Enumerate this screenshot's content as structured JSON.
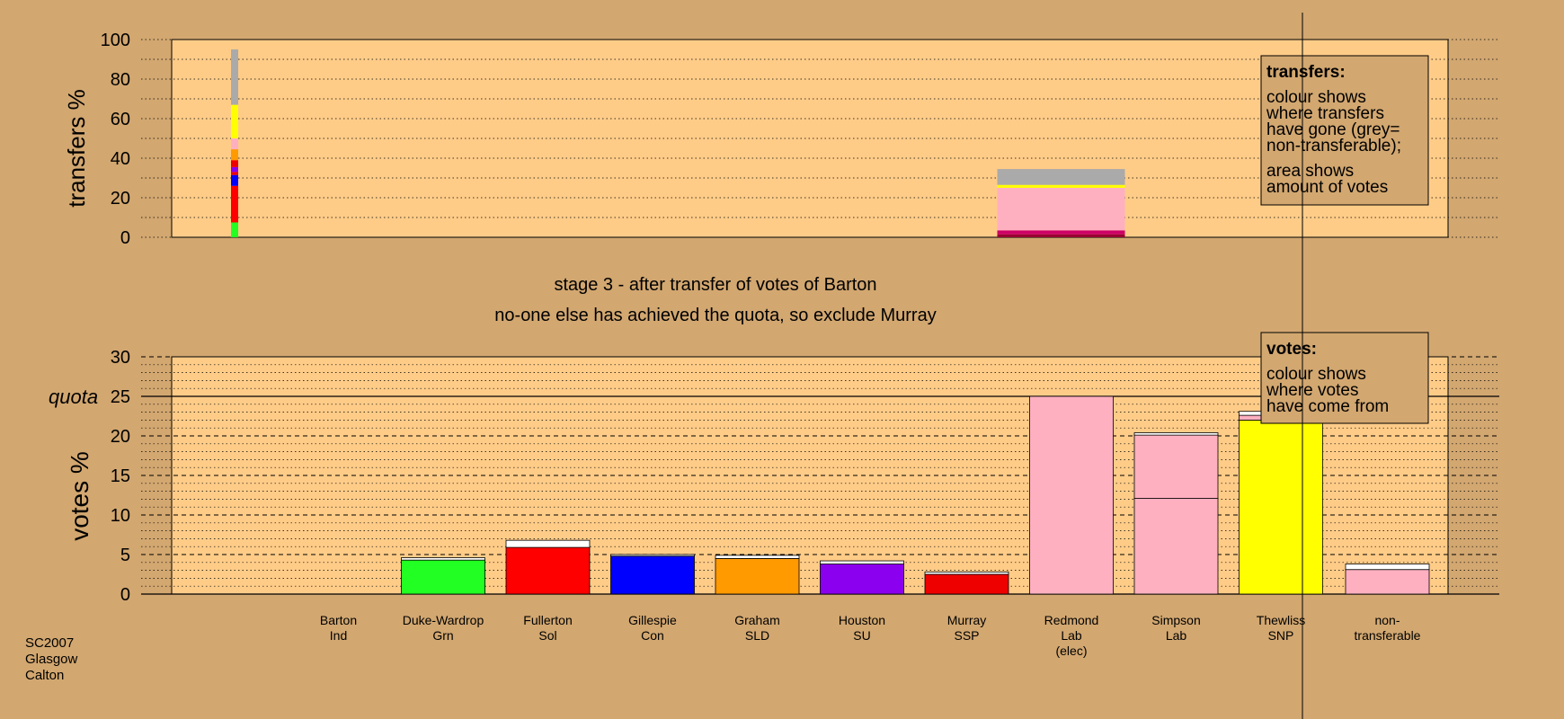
{
  "colors": {
    "background": "#D2A770",
    "plot": "#FFCC88",
    "Grn": "#22FF22",
    "Sol": "#FF0000",
    "Con": "#0000FF",
    "SLD": "#FF9A00",
    "SU": "#8B00EE",
    "SSP": "#EE0000",
    "Lab": "#FFB0C0",
    "SNP": "#FFFF00",
    "nontransferable": "#AAAAAA",
    "exhausted": "#FFFFFF",
    "maroon": "#990033",
    "magenta": "#CC0066"
  },
  "chart_data": [
    {
      "type": "bar",
      "stacked": true,
      "ylabel": "transfers %",
      "yticks": [
        0,
        20,
        40,
        60,
        80,
        100
      ],
      "ylim": [
        0,
        100
      ],
      "grid": true,
      "categories": [
        "Barton",
        "Duke-Wardrop",
        "Fullerton",
        "Gillespie",
        "Graham",
        "Houston",
        "Murray",
        "Redmond",
        "Simpson",
        "Thewliss"
      ],
      "transfer_columns": [
        {
          "category": "Barton",
          "segments": [
            {
              "color": "Grn",
              "value": 7.5
            },
            {
              "color": "Sol",
              "value": 18.5
            },
            {
              "color": "Con",
              "value": 5.5
            },
            {
              "color": "SSP",
              "value": 1.5
            },
            {
              "color": "SU",
              "value": 2.5
            },
            {
              "color": "SSP",
              "value": 3.5
            },
            {
              "color": "SLD",
              "value": 5.5
            },
            {
              "color": "Lab",
              "value": 5.5
            },
            {
              "color": "SNP",
              "value": 17.0
            },
            {
              "color": "nontransferable",
              "value": 28.0
            }
          ]
        },
        {
          "category": "Redmond",
          "segments": [
            {
              "color": "maroon",
              "value": 1.5
            },
            {
              "color": "magenta",
              "value": 2.0
            },
            {
              "color": "Lab",
              "value": 21.5
            },
            {
              "color": "SNP",
              "value": 1.5
            },
            {
              "color": "nontransferable",
              "value": 8.0
            }
          ]
        }
      ],
      "legend": {
        "title": "transfers:",
        "lines1": [
          "colour shows",
          "where transfers",
          "have gone (grey=",
          "non-transferable);"
        ],
        "lines2": [
          "area shows",
          "amount of votes"
        ]
      }
    },
    {
      "type": "bar",
      "stacked": true,
      "ylabel": "votes %",
      "yticks": [
        0,
        5,
        10,
        15,
        20,
        25,
        30
      ],
      "ylim": [
        0,
        30
      ],
      "quota": 25,
      "quota_label": "quota",
      "grid": true,
      "candidates": [
        {
          "name": "Barton",
          "party": "Ind",
          "segments": []
        },
        {
          "name": "Duke-Wardrop",
          "party": "Grn",
          "segments": [
            {
              "color": "Grn",
              "value": 4.3
            },
            {
              "color": "exhausted",
              "value": 0.3
            }
          ]
        },
        {
          "name": "Fullerton",
          "party": "Sol",
          "segments": [
            {
              "color": "Sol",
              "value": 5.9
            },
            {
              "color": "exhausted",
              "value": 0.9
            }
          ]
        },
        {
          "name": "Gillespie",
          "party": "Con",
          "segments": [
            {
              "color": "Con",
              "value": 4.8
            },
            {
              "color": "exhausted",
              "value": 0.2
            }
          ]
        },
        {
          "name": "Graham",
          "party": "SLD",
          "segments": [
            {
              "color": "SLD",
              "value": 4.5
            },
            {
              "color": "exhausted",
              "value": 0.4
            }
          ]
        },
        {
          "name": "Houston",
          "party": "SU",
          "segments": [
            {
              "color": "SU",
              "value": 3.8
            },
            {
              "color": "exhausted",
              "value": 0.4
            }
          ]
        },
        {
          "name": "Murray",
          "party": "SSP",
          "segments": [
            {
              "color": "SSP",
              "value": 2.5
            },
            {
              "color": "exhausted",
              "value": 0.3
            }
          ]
        },
        {
          "name": "Redmond",
          "party": "Lab",
          "note": "(elec)",
          "segments": [
            {
              "color": "Lab",
              "value": 25.0
            }
          ]
        },
        {
          "name": "Simpson",
          "party": "Lab",
          "segments": [
            {
              "color": "Lab",
              "value": 12.1
            },
            {
              "color": "Lab",
              "value": 8.0
            },
            {
              "color": "exhausted",
              "value": 0.3
            }
          ]
        },
        {
          "name": "Thewliss",
          "party": "SNP",
          "segments": [
            {
              "color": "SNP",
              "value": 22.0
            },
            {
              "color": "Lab",
              "value": 0.6
            },
            {
              "color": "exhausted",
              "value": 0.5
            }
          ]
        }
      ],
      "nontransferable": {
        "name": "non-",
        "party": "transferable",
        "segments": [
          {
            "color": "Lab",
            "value": 3.1
          },
          {
            "color": "exhausted",
            "value": 0.7
          }
        ]
      },
      "legend": {
        "title": "votes:",
        "lines1": [
          "colour shows",
          "where votes",
          "have come from"
        ]
      }
    }
  ],
  "stage_title": "stage 3 - after transfer of votes of Barton",
  "stage_subtitle": "no-one else has achieved the quota, so exclude Murray",
  "election": [
    "SC2007",
    "Glasgow",
    "Calton"
  ]
}
